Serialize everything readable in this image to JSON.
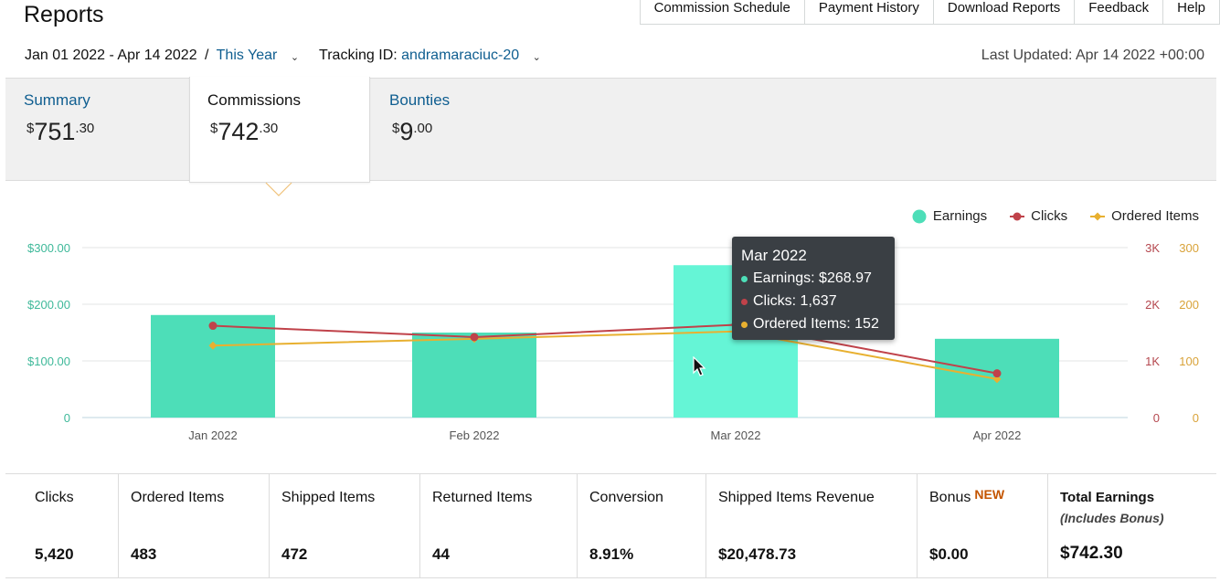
{
  "header": {
    "title": "Reports",
    "tabs": [
      "Commission Schedule",
      "Payment History",
      "Download Reports",
      "Feedback",
      "Help"
    ]
  },
  "filters": {
    "date_range": "Jan 01 2022 - Apr 14 2022",
    "separator": "/",
    "period": "This Year",
    "tracking_label": "Tracking ID:",
    "tracking_id": "andramaraciuc-20",
    "last_updated": "Last Updated: Apr 14 2022 +00:00"
  },
  "summary_tabs": [
    {
      "label": "Summary",
      "currency": "$",
      "whole": "751",
      "cents": ".30"
    },
    {
      "label": "Commissions",
      "currency": "$",
      "whole": "742",
      "cents": ".30"
    },
    {
      "label": "Bounties",
      "currency": "$",
      "whole": "9",
      "cents": ".00"
    }
  ],
  "chart_data": {
    "type": "bar",
    "categories": [
      "Jan 2022",
      "Feb 2022",
      "Mar 2022",
      "Apr 2022"
    ],
    "series": [
      {
        "name": "Earnings",
        "type": "bar",
        "axis": "left",
        "color": "#4ddeb8",
        "values": [
          181,
          150,
          268.97,
          139
        ]
      },
      {
        "name": "Clicks",
        "type": "line",
        "axis": "right1",
        "color": "#c0424a",
        "values": [
          1620,
          1420,
          1637,
          780
        ]
      },
      {
        "name": "Ordered Items",
        "type": "line",
        "axis": "right2",
        "color": "#e8b030",
        "values": [
          127,
          139,
          152,
          68
        ]
      }
    ],
    "y_left": {
      "ticks": [
        "0",
        "$100.00",
        "$200.00",
        "$300.00"
      ],
      "range": [
        0,
        300
      ],
      "color": "#3fb99a"
    },
    "y_right1": {
      "ticks": [
        "0",
        "1K",
        "2K",
        "3K"
      ],
      "range": [
        0,
        3000
      ],
      "color": "#b5484f"
    },
    "y_right2": {
      "ticks": [
        "0",
        "100",
        "200",
        "300"
      ],
      "range": [
        0,
        300
      ],
      "color": "#d9a33a"
    },
    "highlight_color": "#65f5d6",
    "highlight_index": 2,
    "grid": true,
    "legend_position": "top-right"
  },
  "tooltip": {
    "title": "Mar 2022",
    "rows": [
      "Earnings: $268.97",
      "Clicks: 1,637",
      "Ordered Items: 152"
    ]
  },
  "stats": [
    {
      "label": "Clicks",
      "value": "5,420"
    },
    {
      "label": "Ordered Items",
      "value": "483"
    },
    {
      "label": "Shipped Items",
      "value": "472"
    },
    {
      "label": "Returned Items",
      "value": "44"
    },
    {
      "label": "Conversion",
      "value": "8.91%"
    },
    {
      "label": "Shipped Items Revenue",
      "value": "$20,478.73"
    },
    {
      "label": "Bonus",
      "badge": "NEW",
      "value": "$0.00"
    },
    {
      "label": "Total Earnings",
      "sublabel": "(Includes Bonus)",
      "value": "$742.30"
    }
  ]
}
